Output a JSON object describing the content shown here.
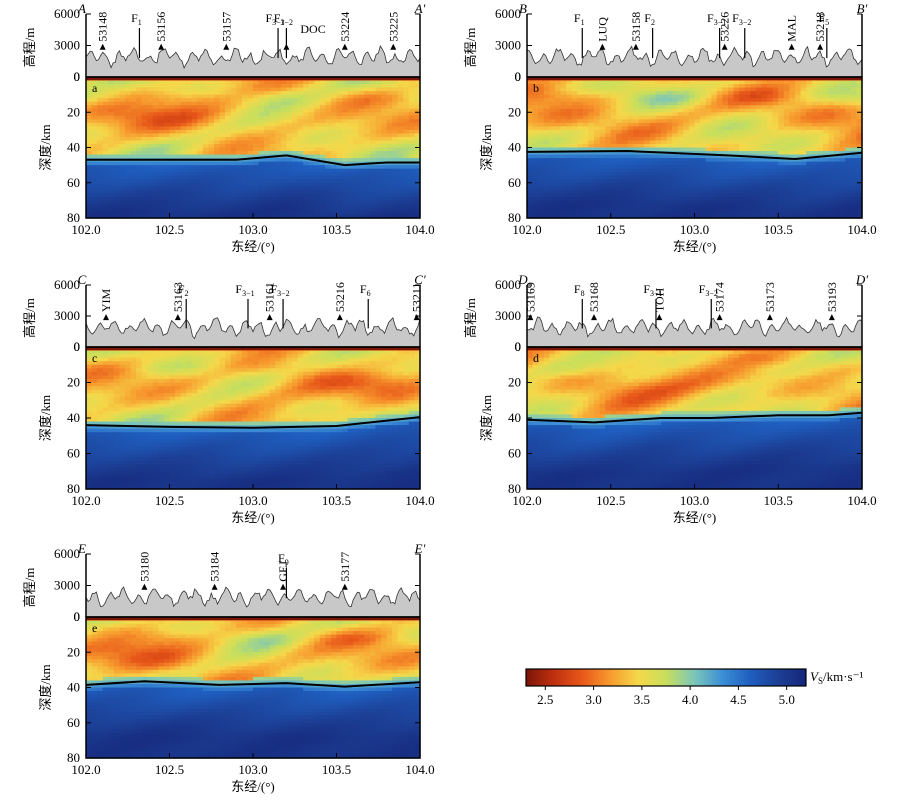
{
  "chart_data": {
    "type": "heatmap",
    "xlabel": "东经/(°)",
    "ylabel_depth": "深度/km",
    "ylabel_elev": "高程/m",
    "x_range": [
      102.0,
      104.0
    ],
    "x_ticks": [
      "102.0",
      "102.5",
      "103.0",
      "103.5",
      "104.0"
    ],
    "depth_range": [
      0,
      80
    ],
    "depth_ticks": [
      "0",
      "20",
      "40",
      "60",
      "80"
    ],
    "elev_range": [
      0,
      6000
    ],
    "elev_ticks": [
      "0",
      "3000",
      "6000"
    ],
    "colorbar": {
      "label_main": "V",
      "label_sub": "S",
      "label_unit": "/km·s⁻¹",
      "range": [
        2.3,
        5.2
      ],
      "ticks": [
        "2.5",
        "3.0",
        "3.5",
        "4.0",
        "4.5",
        "5.0"
      ],
      "colors": [
        "#7a1508",
        "#c0300f",
        "#e8581a",
        "#f79a2e",
        "#f5d84a",
        "#c8df5c",
        "#7cc7b8",
        "#3d8fd6",
        "#1f5fc0",
        "#1c3f95",
        "#15267a"
      ]
    },
    "panels": [
      {
        "letter": "a",
        "start": "A",
        "end": "A′",
        "moho": [
          [
            102.0,
            47
          ],
          [
            102.9,
            47
          ],
          [
            103.2,
            44.5
          ],
          [
            103.55,
            50
          ],
          [
            103.8,
            48.5
          ],
          [
            104.0,
            48.5
          ]
        ],
        "markers": [
          {
            "x": 102.1,
            "text": "53148",
            "kind": "station"
          },
          {
            "x": 102.32,
            "text": "F",
            "sub": "1",
            "kind": "fault"
          },
          {
            "x": 102.45,
            "text": "53156",
            "kind": "station"
          },
          {
            "x": 102.84,
            "text": "53157",
            "kind": "station"
          },
          {
            "x": 103.15,
            "text": "F",
            "sub": "3−1",
            "kind": "fault"
          },
          {
            "x": 103.2,
            "text": "F",
            "sub": "3−2",
            "kind": "fault"
          },
          {
            "x": 103.2,
            "text": "DOC",
            "kind": "station-h"
          },
          {
            "x": 103.55,
            "text": "53224",
            "kind": "station"
          },
          {
            "x": 103.84,
            "text": "53225",
            "kind": "station"
          }
        ]
      },
      {
        "letter": "b",
        "start": "B",
        "end": "B′",
        "moho": [
          [
            102.0,
            42.5
          ],
          [
            102.6,
            42
          ],
          [
            103.2,
            44.5
          ],
          [
            103.6,
            46.5
          ],
          [
            104.0,
            43
          ]
        ],
        "markers": [
          {
            "x": 102.33,
            "text": "F",
            "sub": "1",
            "kind": "fault"
          },
          {
            "x": 102.45,
            "text": "LUQ",
            "kind": "station"
          },
          {
            "x": 102.65,
            "text": "53158",
            "kind": "station"
          },
          {
            "x": 102.75,
            "text": "F",
            "sub": "2",
            "kind": "fault"
          },
          {
            "x": 103.15,
            "text": "F",
            "sub": "3−1",
            "kind": "fault"
          },
          {
            "x": 103.18,
            "text": "53226",
            "kind": "station"
          },
          {
            "x": 103.3,
            "text": "F",
            "sub": "3−2",
            "kind": "fault"
          },
          {
            "x": 103.58,
            "text": "MAL",
            "kind": "station"
          },
          {
            "x": 103.75,
            "text": "53218",
            "kind": "station"
          },
          {
            "x": 103.79,
            "text": "F",
            "sub": "5",
            "kind": "fault"
          }
        ]
      },
      {
        "letter": "c",
        "start": "C",
        "end": "C′",
        "moho": [
          [
            102.0,
            44
          ],
          [
            102.5,
            45
          ],
          [
            103.0,
            45.5
          ],
          [
            103.5,
            44.5
          ],
          [
            104.0,
            39.5
          ]
        ],
        "markers": [
          {
            "x": 102.12,
            "text": "YIM",
            "kind": "station"
          },
          {
            "x": 102.55,
            "text": "53163",
            "kind": "station"
          },
          {
            "x": 102.6,
            "text": "F",
            "sub": "2",
            "kind": "fault"
          },
          {
            "x": 102.97,
            "text": "F",
            "sub": "3−1",
            "kind": "fault"
          },
          {
            "x": 103.1,
            "text": "53161",
            "kind": "station"
          },
          {
            "x": 103.18,
            "text": "F",
            "sub": "3−2",
            "kind": "fault"
          },
          {
            "x": 103.52,
            "text": "53216",
            "kind": "station"
          },
          {
            "x": 103.69,
            "text": "F",
            "sub": "6",
            "kind": "fault"
          },
          {
            "x": 103.98,
            "text": "53211",
            "kind": "station"
          }
        ]
      },
      {
        "letter": "d",
        "start": "D",
        "end": "D′",
        "moho": [
          [
            102.0,
            41
          ],
          [
            102.4,
            42.5
          ],
          [
            102.8,
            40
          ],
          [
            103.1,
            40
          ],
          [
            103.5,
            38.5
          ],
          [
            103.8,
            38.5
          ],
          [
            104.0,
            37
          ]
        ],
        "markers": [
          {
            "x": 102.02,
            "text": "53169",
            "kind": "station"
          },
          {
            "x": 102.33,
            "text": "F",
            "sub": "8",
            "kind": "fault"
          },
          {
            "x": 102.4,
            "text": "53168",
            "kind": "station"
          },
          {
            "x": 102.77,
            "text": "F",
            "sub": "3−1",
            "kind": "fault"
          },
          {
            "x": 102.79,
            "text": "TOH",
            "kind": "station"
          },
          {
            "x": 103.1,
            "text": "F",
            "sub": "3−2",
            "kind": "fault"
          },
          {
            "x": 103.15,
            "text": "53174",
            "kind": "station"
          },
          {
            "x": 103.45,
            "text": "53173",
            "kind": "station"
          },
          {
            "x": 103.82,
            "text": "53193",
            "kind": "station"
          }
        ]
      },
      {
        "letter": "e",
        "start": "E",
        "end": "E′",
        "moho": [
          [
            102.0,
            38.5
          ],
          [
            102.35,
            36.5
          ],
          [
            102.8,
            38.5
          ],
          [
            103.2,
            37.5
          ],
          [
            103.55,
            39.5
          ],
          [
            104.0,
            37
          ]
        ],
        "markers": [
          {
            "x": 102.35,
            "text": "53180",
            "kind": "station"
          },
          {
            "x": 102.77,
            "text": "53184",
            "kind": "station"
          },
          {
            "x": 103.18,
            "text": "GEJ",
            "kind": "station"
          },
          {
            "x": 103.2,
            "text": "F",
            "sub": "9",
            "kind": "fault"
          },
          {
            "x": 103.55,
            "text": "53177",
            "kind": "station"
          }
        ]
      }
    ]
  }
}
